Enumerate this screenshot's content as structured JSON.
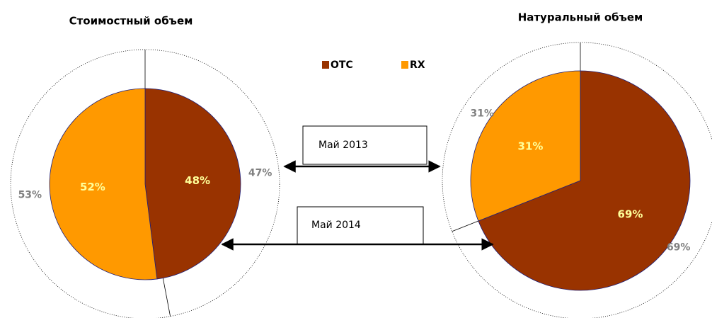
{
  "legend": {
    "categories": [
      "OTC",
      "RX"
    ],
    "colors": [
      "#993300",
      "#ff9900"
    ]
  },
  "annotations": [
    "Май 2013",
    "Май 2014"
  ],
  "chart_data": [
    {
      "type": "pie",
      "title": "Стоимостный объем",
      "outer": {
        "values": [
          47,
          53
        ],
        "value_labels": [
          "47%",
          "53%"
        ]
      },
      "inner": {
        "values": [
          48,
          52
        ],
        "value_labels": [
          "48%",
          "52%"
        ]
      }
    },
    {
      "type": "pie",
      "title": "Натуральный объем",
      "outer": {
        "values": [
          69,
          31
        ],
        "value_labels": [
          "69%",
          "31%"
        ]
      },
      "inner": {
        "values": [
          69,
          31
        ],
        "value_labels": [
          "69%",
          "31%"
        ]
      }
    }
  ]
}
